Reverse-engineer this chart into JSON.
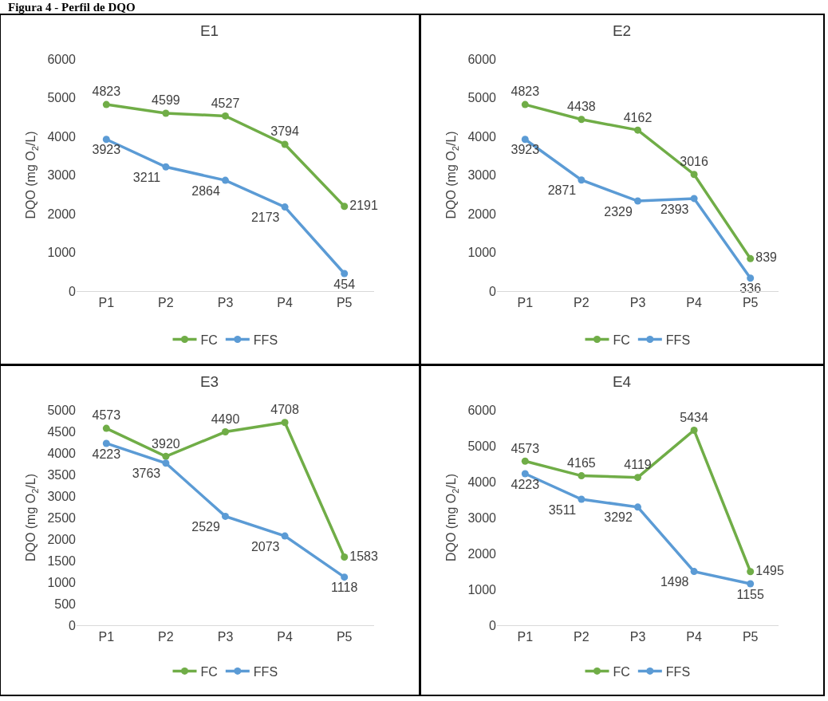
{
  "chart_data": [
    {
      "type": "line",
      "title": "E1",
      "ylabel": "DQO (mg O$_{2}$/L)",
      "annotations": [
        "Figura 4 - Perfil de DQO"
      ],
      "categories": [
        "P1",
        "P2",
        "P3",
        "P4",
        "P5"
      ],
      "series": [
        {
          "name": "FC",
          "color": "#70ad47",
          "values": [
            4823,
            4599,
            4527,
            3794,
            2191
          ]
        },
        {
          "name": "FFS",
          "color": "#5b9bd5",
          "values": [
            3923,
            3211,
            2864,
            2173,
            454
          ]
        }
      ],
      "ylim": [
        0,
        6000
      ],
      "yticks": [
        0,
        1000,
        2000,
        3000,
        4000,
        5000,
        6000
      ],
      "data_labels": true,
      "legend": "bottom",
      "marker": "circle",
      "line_style": "solid"
    },
    {
      "type": "line",
      "title": "E2",
      "ylabel": "DQO (mg O$_{2}$/L)",
      "categories": [
        "P1",
        "P2",
        "P3",
        "P4",
        "P5"
      ],
      "series": [
        {
          "name": "FC",
          "color": "#70ad47",
          "values": [
            4823,
            4438,
            4162,
            3016,
            839
          ]
        },
        {
          "name": "FFS",
          "color": "#5b9bd5",
          "values": [
            3923,
            2871,
            2329,
            2393,
            336
          ]
        }
      ],
      "ylim": [
        0,
        6000
      ],
      "yticks": [
        0,
        1000,
        2000,
        3000,
        4000,
        5000,
        6000
      ],
      "data_labels": true,
      "legend": "bottom",
      "marker": "circle",
      "line_style": "solid"
    },
    {
      "type": "line",
      "title": "E3",
      "ylabel": "DQO (mg O$_{2}$/L)",
      "categories": [
        "P1",
        "P2",
        "P3",
        "P4",
        "P5"
      ],
      "series": [
        {
          "name": "FC",
          "color": "#70ad47",
          "values": [
            4573,
            3920,
            4490,
            4708,
            1583
          ]
        },
        {
          "name": "FFS",
          "color": "#5b9bd5",
          "values": [
            4223,
            3763,
            2529,
            2073,
            1118
          ]
        }
      ],
      "ylim": [
        0,
        5000
      ],
      "yticks": [
        0,
        500,
        1000,
        1500,
        2000,
        2500,
        3000,
        3500,
        4000,
        4500,
        5000
      ],
      "data_labels": true,
      "legend": "bottom",
      "marker": "circle",
      "line_style": "solid"
    },
    {
      "type": "line",
      "title": "E4",
      "ylabel": "DQO (mg O$_{2}$/L)",
      "categories": [
        "P1",
        "P2",
        "P3",
        "P4",
        "P5"
      ],
      "series": [
        {
          "name": "FC",
          "color": "#70ad47",
          "values": [
            4573,
            4165,
            4119,
            5434,
            1495
          ]
        },
        {
          "name": "FFS",
          "color": "#5b9bd5",
          "values": [
            4223,
            3511,
            3292,
            1498,
            1155
          ]
        }
      ],
      "ylim": [
        0,
        6000
      ],
      "yticks": [
        0,
        1000,
        2000,
        3000,
        4000,
        5000,
        6000
      ],
      "data_labels": true,
      "legend": "bottom",
      "marker": "circle",
      "line_style": "solid"
    }
  ]
}
